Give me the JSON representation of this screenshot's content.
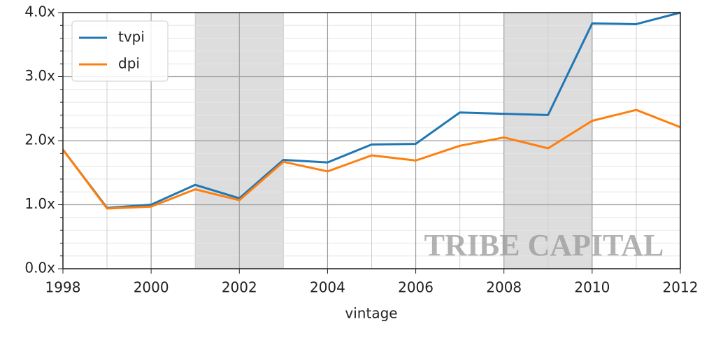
{
  "chart_data": {
    "type": "line",
    "xlabel": "vintage",
    "watermark": "TRIBE CAPITAL",
    "x": [
      1998,
      1999,
      2000,
      2001,
      2002,
      2003,
      2004,
      2005,
      2006,
      2007,
      2008,
      2009,
      2010,
      2011,
      2012
    ],
    "series": [
      {
        "name": "tvpi",
        "color": "#1f77b4",
        "values": [
          1.86,
          0.95,
          1.0,
          1.31,
          1.1,
          1.7,
          1.66,
          1.94,
          1.95,
          2.44,
          2.42,
          2.4,
          3.83,
          3.82,
          4.0
        ]
      },
      {
        "name": "dpi",
        "color": "#ff7f0e",
        "values": [
          1.86,
          0.94,
          0.97,
          1.24,
          1.07,
          1.67,
          1.52,
          1.77,
          1.69,
          1.92,
          2.05,
          1.88,
          2.31,
          2.48,
          2.21
        ]
      }
    ],
    "xlim": [
      1998,
      2012
    ],
    "xticks": [
      1998,
      2000,
      2002,
      2004,
      2006,
      2008,
      2010,
      2012
    ],
    "xminorticks": [
      1999,
      2001,
      2003,
      2005,
      2007,
      2009,
      2011
    ],
    "ylim": [
      0,
      4
    ],
    "yticks": [
      {
        "value": 0,
        "label": "0.0x"
      },
      {
        "value": 1,
        "label": "1.0x"
      },
      {
        "value": 2,
        "label": "2.0x"
      },
      {
        "value": 3,
        "label": "3.0x"
      },
      {
        "value": 4,
        "label": "4.0x"
      }
    ],
    "yminorticks": [
      0.2,
      0.4,
      0.6,
      0.8,
      1.2,
      1.4,
      1.6,
      1.8,
      2.2,
      2.4,
      2.6,
      2.8,
      3.2,
      3.4,
      3.6,
      3.8
    ],
    "shaded_spans": [
      [
        2001,
        2003
      ],
      [
        2008,
        2010
      ]
    ],
    "shade_color": "#dddddd",
    "grid": true,
    "legend": "upper left"
  }
}
